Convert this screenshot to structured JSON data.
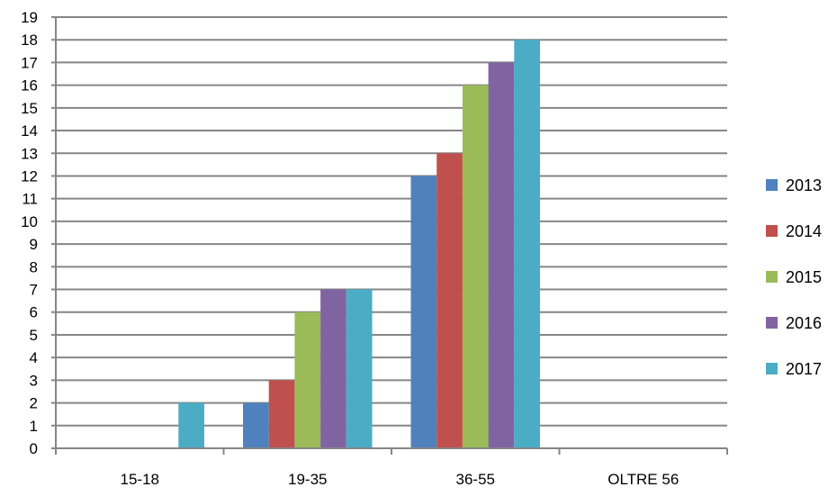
{
  "chart_data": {
    "type": "bar",
    "title": "",
    "xlabel": "",
    "ylabel": "",
    "categories": [
      "15-18",
      "19-35",
      "36-55",
      "OLTRE 56"
    ],
    "ylim": [
      0,
      19
    ],
    "yticks": [
      0,
      1,
      2,
      3,
      4,
      5,
      6,
      7,
      8,
      9,
      10,
      11,
      12,
      13,
      14,
      15,
      16,
      17,
      18,
      19
    ],
    "grid": true,
    "legend_position": "right",
    "series": [
      {
        "name": "2013",
        "color": "#4F81BD",
        "values": [
          0,
          2,
          12,
          0
        ]
      },
      {
        "name": "2014",
        "color": "#C0504D",
        "values": [
          0,
          3,
          13,
          0
        ]
      },
      {
        "name": "2015",
        "color": "#9BBB59",
        "values": [
          0,
          6,
          16,
          0
        ]
      },
      {
        "name": "2016",
        "color": "#8064A2",
        "values": [
          0,
          7,
          17,
          0
        ]
      },
      {
        "name": "2017",
        "color": "#4BACC6",
        "values": [
          2,
          7,
          18,
          0
        ]
      }
    ]
  }
}
